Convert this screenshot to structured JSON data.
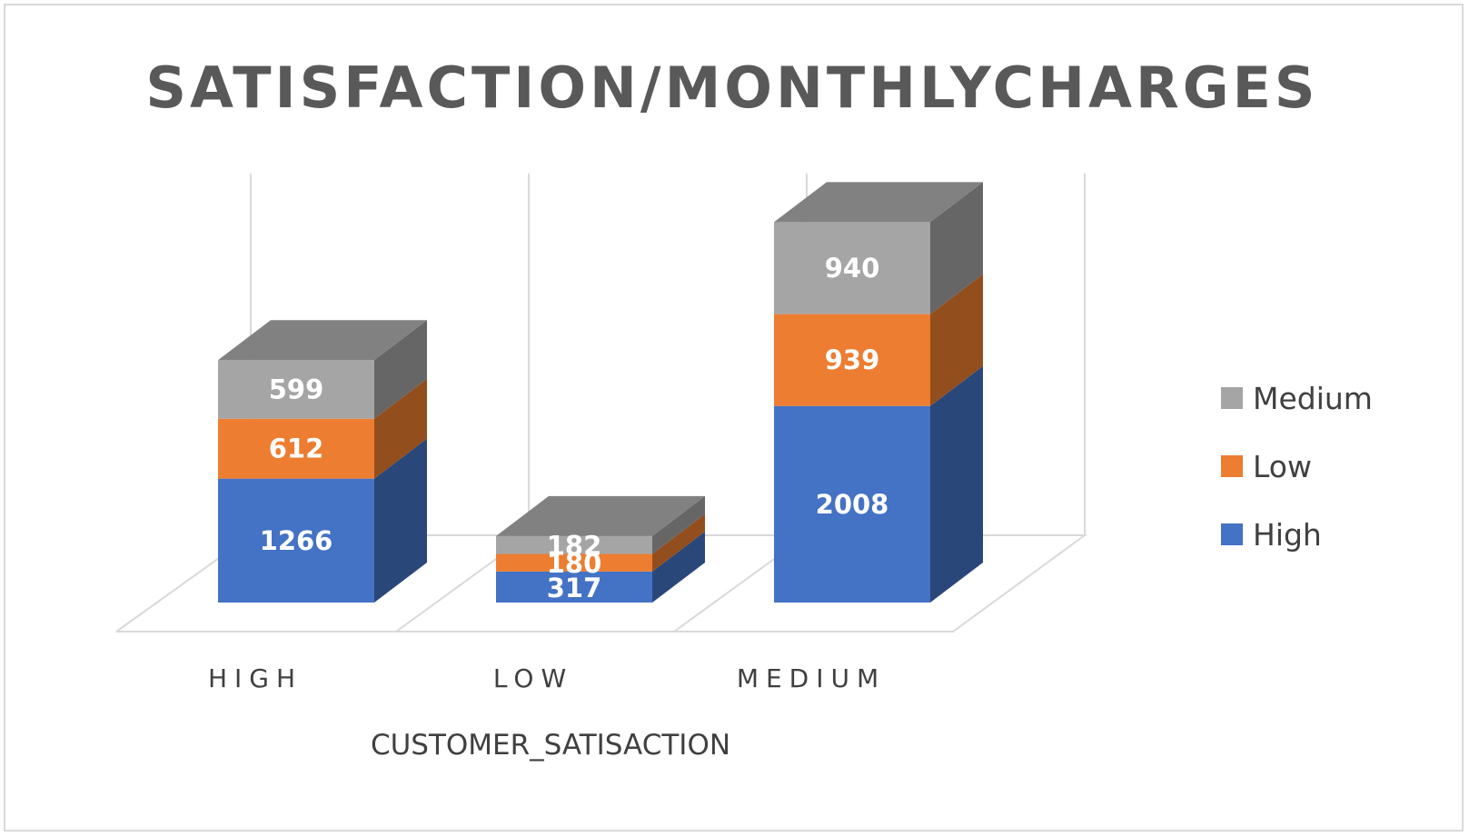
{
  "chart_data": {
    "type": "bar",
    "stacked": true,
    "style": "3d-column",
    "title": "SATISFACTION/MONTHLYCHARGES",
    "xlabel": "CUSTOMER_SATISACTION",
    "ylabel": "",
    "categories": [
      "HIGH",
      "LOW",
      "MEDIUM"
    ],
    "series": [
      {
        "name": "High",
        "values": [
          1266,
          317,
          2008
        ],
        "color": "#4472c4"
      },
      {
        "name": "Low",
        "values": [
          612,
          180,
          939
        ],
        "color": "#ed7d31"
      },
      {
        "name": "Medium",
        "values": [
          599,
          182,
          940
        ],
        "color": "#a5a5a5"
      }
    ],
    "legend": {
      "position": "right",
      "order": [
        "Medium",
        "Low",
        "High"
      ]
    },
    "grid": true,
    "data_labels": true
  }
}
